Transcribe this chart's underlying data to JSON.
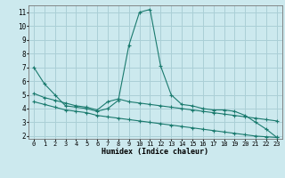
{
  "xlabel": "Humidex (Indice chaleur)",
  "bg_color": "#cce9ee",
  "grid_color": "#aacfd6",
  "line_color": "#1a7a6e",
  "xlim": [
    -0.5,
    23.5
  ],
  "ylim": [
    1.8,
    11.5
  ],
  "yticks": [
    2,
    3,
    4,
    5,
    6,
    7,
    8,
    9,
    10,
    11
  ],
  "xticks": [
    0,
    1,
    2,
    3,
    4,
    5,
    6,
    7,
    8,
    9,
    10,
    11,
    12,
    13,
    14,
    15,
    16,
    17,
    18,
    19,
    20,
    21,
    22,
    23
  ],
  "series1_x": [
    0,
    1,
    2,
    3,
    4,
    5,
    6,
    7,
    8,
    9,
    10,
    11,
    12,
    13,
    14,
    15,
    16,
    17,
    18,
    19,
    20,
    21,
    22,
    23
  ],
  "series1_y": [
    7.0,
    5.8,
    5.0,
    4.2,
    4.1,
    4.0,
    3.8,
    4.0,
    4.6,
    8.6,
    11.0,
    11.2,
    7.1,
    5.0,
    4.3,
    4.2,
    4.0,
    3.9,
    3.9,
    3.8,
    3.5,
    3.0,
    2.5,
    1.9
  ],
  "series2_x": [
    0,
    1,
    2,
    3,
    4,
    5,
    6,
    7,
    8,
    9,
    10,
    11,
    12,
    13,
    14,
    15,
    16,
    17,
    18,
    19,
    20,
    21,
    22,
    23
  ],
  "series2_y": [
    5.1,
    4.8,
    4.6,
    4.4,
    4.2,
    4.1,
    3.9,
    4.5,
    4.7,
    4.5,
    4.4,
    4.3,
    4.2,
    4.1,
    4.0,
    3.9,
    3.8,
    3.7,
    3.6,
    3.5,
    3.4,
    3.3,
    3.2,
    3.1
  ],
  "series3_x": [
    0,
    1,
    2,
    3,
    4,
    5,
    6,
    7,
    8,
    9,
    10,
    11,
    12,
    13,
    14,
    15,
    16,
    17,
    18,
    19,
    20,
    21,
    22,
    23
  ],
  "series3_y": [
    4.5,
    4.3,
    4.1,
    3.9,
    3.8,
    3.7,
    3.5,
    3.4,
    3.3,
    3.2,
    3.1,
    3.0,
    2.9,
    2.8,
    2.7,
    2.6,
    2.5,
    2.4,
    2.3,
    2.2,
    2.1,
    2.0,
    1.95,
    1.9
  ]
}
